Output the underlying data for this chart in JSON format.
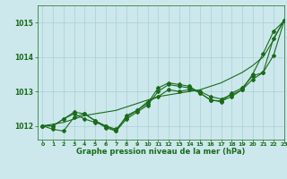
{
  "background_color": "#cce8ec",
  "grid_color": "#aacfd4",
  "line_color": "#1a6b1a",
  "title": "Graphe pression niveau de la mer (hPa)",
  "xlim": [
    -0.5,
    23
  ],
  "ylim": [
    1011.6,
    1015.5
  ],
  "yticks": [
    1012,
    1013,
    1014,
    1015
  ],
  "xticks": [
    0,
    1,
    2,
    3,
    4,
    5,
    6,
    7,
    8,
    9,
    10,
    11,
    12,
    13,
    14,
    15,
    16,
    17,
    18,
    19,
    20,
    21,
    22,
    23
  ],
  "smooth_line": [
    1012.0,
    1012.05,
    1012.1,
    1012.2,
    1012.3,
    1012.35,
    1012.4,
    1012.45,
    1012.55,
    1012.65,
    1012.75,
    1012.85,
    1012.9,
    1012.95,
    1013.0,
    1013.05,
    1013.15,
    1013.25,
    1013.4,
    1013.55,
    1013.75,
    1014.0,
    1014.5,
    1015.1
  ],
  "series1": [
    1012.0,
    1012.0,
    1012.2,
    1012.4,
    1012.35,
    1012.15,
    1012.0,
    1011.9,
    1012.25,
    1012.45,
    1012.7,
    1012.85,
    1013.05,
    1013.0,
    1013.05,
    1013.0,
    1012.85,
    1012.78,
    1012.9,
    1013.05,
    1013.35,
    1013.55,
    1014.05,
    1015.05
  ],
  "series2": [
    1012.0,
    1011.9,
    1011.85,
    1012.25,
    1012.35,
    1012.15,
    1011.95,
    1011.85,
    1012.2,
    1012.4,
    1012.6,
    1013.0,
    1013.2,
    1013.15,
    1013.1,
    1012.95,
    1012.75,
    1012.72,
    1012.85,
    1013.05,
    1013.5,
    1014.1,
    1014.75,
    1015.05
  ],
  "series3": [
    1012.0,
    1012.0,
    1012.2,
    1012.35,
    1012.2,
    1012.1,
    1012.0,
    1011.85,
    1012.3,
    1012.45,
    1012.65,
    1013.1,
    1013.25,
    1013.2,
    1013.15,
    1012.95,
    1012.75,
    1012.7,
    1012.95,
    1013.1,
    1013.45,
    1013.55,
    1014.55,
    1015.05
  ]
}
